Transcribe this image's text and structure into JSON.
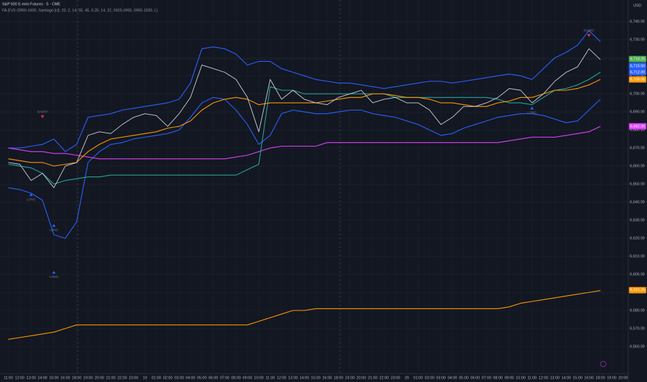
{
  "chart_data": {
    "type": "line",
    "title": "S&P 500 E-mini Futures · 5 · CME",
    "subtitle": "FA-EVS (0950-1600, Santiago [cl], 20, 2, 14, 55, 45, 0.25, 14, 22, 0925-0955, 0955-1500, L)",
    "currency": "USD",
    "categories": [
      "11:00",
      "12:00",
      "13:00",
      "14:00",
      "15:00",
      "16:00",
      "18:00",
      "19:00",
      "20:00",
      "21:00",
      "22:00",
      "23:00",
      "19",
      "01:00",
      "02:00",
      "03:00",
      "04:00",
      "05:00",
      "06:00",
      "07:00",
      "08:00",
      "09:00",
      "10:00",
      "11:00",
      "12:00",
      "13:00",
      "14:00",
      "15:00",
      "16:00",
      "18:00",
      "19:00",
      "20:00",
      "21:00",
      "22:00",
      "23:00",
      "20",
      "01:00",
      "02:00",
      "03:00",
      "04:00",
      "05:00",
      "06:00",
      "07:00",
      "08:00",
      "09:00",
      "10:00",
      "11:00",
      "12:00",
      "13:00",
      "14:00",
      "15:00",
      "16:00",
      "18:00",
      "19:00",
      "20:00"
    ],
    "series": [
      {
        "color": "#2962ff",
        "values": [
          6670,
          6670,
          6671,
          6672,
          6675,
          6668,
          6672,
          6687,
          6688,
          6689,
          6691,
          6692,
          6693,
          6694,
          6695,
          6697,
          6706,
          6725,
          6726,
          6725,
          6722,
          6716,
          6718,
          6718,
          6714,
          6712,
          6710,
          6708,
          6707,
          6706,
          6706,
          6705,
          6704,
          6703,
          6704,
          6705,
          6706,
          6707,
          6707,
          6706,
          6707,
          6708,
          6709,
          6710,
          6711,
          6710,
          6708,
          6714,
          6720,
          6723,
          6727,
          6735,
          6729,
          null,
          null
        ]
      },
      {
        "color": "#2962ff",
        "values": [
          6648,
          6647,
          6645,
          6641,
          6622,
          6620,
          6629,
          6662,
          6668,
          6672,
          6673,
          6675,
          6676,
          6677,
          6678,
          6680,
          6687,
          6695,
          6698,
          6697,
          6691,
          6683,
          6672,
          6677,
          6689,
          6691,
          6690,
          6689,
          6689,
          6690,
          6691,
          6691,
          6689,
          6688,
          6687,
          6685,
          6683,
          6680,
          6677,
          6678,
          6681,
          6683,
          6685,
          6687,
          6688,
          6689,
          6689,
          6688,
          6686,
          6684,
          6685,
          6691,
          6697,
          null,
          null
        ]
      },
      {
        "color": "#e040fb",
        "values": [
          6670,
          6669,
          6668,
          6668,
          6667,
          6667,
          6666,
          6665,
          6664,
          6664,
          6664,
          6664,
          6664,
          6664,
          6664,
          6664,
          6664,
          6664,
          6664,
          6664,
          6665,
          6666,
          6668,
          6670,
          6671,
          6671,
          6671,
          6671,
          6673,
          6673,
          6673,
          6673,
          6673,
          6673,
          6673,
          6673,
          6673,
          6673,
          6673,
          6673,
          6673,
          6673,
          6673,
          6673,
          6674,
          6675,
          6676,
          6676,
          6676,
          6677,
          6678,
          6679,
          6682,
          null,
          null
        ]
      },
      {
        "color": "#26a69a",
        "values": [
          6661,
          6660,
          6659,
          6656,
          6650,
          6652,
          6653,
          6654,
          6654,
          6655,
          6655,
          6655,
          6655,
          6655,
          6655,
          6655,
          6655,
          6655,
          6655,
          6655,
          6655,
          6658,
          6661,
          6704,
          6702,
          6702,
          6700,
          6700,
          6700,
          6700,
          6700,
          6700,
          6700,
          6700,
          6698,
          6698,
          6698,
          6698,
          6698,
          6698,
          6698,
          6698,
          6698,
          6697,
          6695,
          6695,
          6694,
          6698,
          6702,
          6703,
          6705,
          6708,
          6712,
          null,
          null
        ]
      },
      {
        "color": "#ff9800",
        "values": [
          6664,
          6663,
          6662,
          6662,
          6660,
          6661,
          6662,
          6668,
          6672,
          6675,
          6676,
          6677,
          6678,
          6679,
          6681,
          6682,
          6685,
          6691,
          6695,
          6697,
          6698,
          6697,
          6694,
          6695,
          6695,
          6695,
          6695,
          6695,
          6696,
          6697,
          6698,
          6698,
          6700,
          6700,
          6699,
          6698,
          6698,
          6697,
          6695,
          6695,
          6694,
          6693,
          6693,
          6695,
          6696,
          6698,
          6698,
          6700,
          6702,
          6702,
          6703,
          6705,
          6708,
          null,
          null
        ]
      },
      {
        "color": "#d1d4dc",
        "values": [
          6662,
          6661,
          6652,
          6656,
          6648,
          6660,
          6662,
          6677,
          6679,
          6678,
          6683,
          6687,
          6689,
          6688,
          6682,
          6689,
          6698,
          6716,
          6714,
          6712,
          6708,
          6698,
          6679,
          6708,
          6697,
          6702,
          6697,
          6695,
          6694,
          6698,
          6700,
          6702,
          6695,
          6697,
          6698,
          6695,
          6695,
          6691,
          6683,
          6687,
          6693,
          6693,
          6695,
          6698,
          6703,
          6702,
          6695,
          6700,
          6707,
          6712,
          6715,
          6725,
          6719,
          null,
          null
        ]
      },
      {
        "color": "#ff9800",
        "values": [
          6564,
          6565,
          6566,
          6567,
          6568,
          6570,
          6572,
          6572,
          6572,
          6572,
          6572,
          6572,
          6572,
          6572,
          6572,
          6572,
          6572,
          6572,
          6572,
          6572,
          6572,
          6572,
          6574,
          6576,
          6578,
          6580,
          6580,
          6581,
          6581,
          6581,
          6581,
          6581,
          6581,
          6581,
          6581,
          6581,
          6581,
          6581,
          6581,
          6581,
          6581,
          6581,
          6581,
          6581,
          6582,
          6584,
          6585,
          6586,
          6587,
          6588,
          6589,
          6590,
          6591,
          null,
          null
        ]
      }
    ],
    "ylim": [
      6545,
      6752
    ],
    "yticks": [
      {
        "value": 6560,
        "label": "6,560.00"
      },
      {
        "value": 6570,
        "label": "6,570.00"
      },
      {
        "value": 6580,
        "label": "6,580.00"
      },
      {
        "value": 6590,
        "label": "6,590.00"
      },
      {
        "value": 6600,
        "label": "6,600.00"
      },
      {
        "value": 6610,
        "label": "6,610.00"
      },
      {
        "value": 6620,
        "label": "6,620.00"
      },
      {
        "value": 6630,
        "label": "6,630.00"
      },
      {
        "value": 6640,
        "label": "6,640.00"
      },
      {
        "value": 6650,
        "label": "6,650.00"
      },
      {
        "value": 6660,
        "label": "6,660.00"
      },
      {
        "value": 6670,
        "label": "6,670.00"
      },
      {
        "value": 6680,
        "label": "6,680.00"
      },
      {
        "value": 6690,
        "label": "6,690.00"
      },
      {
        "value": 6700,
        "label": "6,700.00"
      },
      {
        "value": 6710,
        "label": "6,710.00"
      },
      {
        "value": 6720,
        "label": "6,720.00"
      },
      {
        "value": 6730,
        "label": "6,730.00"
      },
      {
        "value": 6740,
        "label": "6,740.00"
      }
    ],
    "grid": true,
    "price_labels": [
      {
        "label": "6,719.25",
        "value": 6719.25,
        "color": "#4caf50"
      },
      {
        "label": "6,715.50",
        "value": 6715.5,
        "color": "#2962ff"
      },
      {
        "label": "6,712.00",
        "value": 6712,
        "color": "#2962ff"
      },
      {
        "label": "6,708.00",
        "value": 6708,
        "color": "#ff9800"
      },
      {
        "label": "6,682.00",
        "value": 6682,
        "color": "#e040fb"
      },
      {
        "label": "6,591.25",
        "value": 6591.25,
        "color": "#ff9800"
      }
    ],
    "signals": [
      {
        "text": "SHORT",
        "x": 3,
        "y": 6690
      },
      {
        "text": "LONG",
        "x": 2,
        "y": 6643
      },
      {
        "text": "LONG",
        "x": 4,
        "y": 6626
      },
      {
        "text": "LONG",
        "x": 4,
        "y": 6600
      },
      {
        "text": "LONG",
        "x": 46,
        "y": 6691
      },
      {
        "text": "SHORT",
        "x": 51,
        "y": 6735
      }
    ]
  }
}
